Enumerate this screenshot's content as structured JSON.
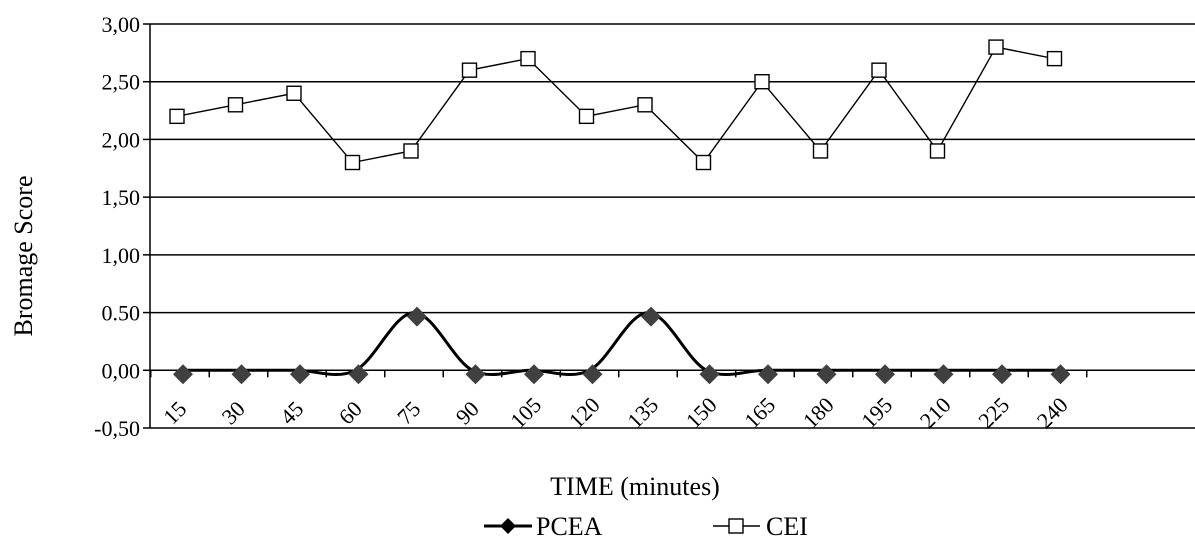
{
  "chart_data": {
    "type": "line",
    "title": "",
    "xlabel": "TIME (minutes)",
    "ylabel": "Bromage Score",
    "categories": [
      "15",
      "30",
      "45",
      "60",
      "75",
      "90",
      "105",
      "120",
      "135",
      "150",
      "165",
      "180",
      "195",
      "210",
      "225",
      "240"
    ],
    "y_tick_labels": [
      "3,00",
      "2,50",
      "2,00",
      "1,50",
      "1,00",
      "0.50",
      "0,00",
      "-0,50"
    ],
    "ylim": [
      -0.5,
      3.0
    ],
    "grid": true,
    "legend_position": "bottom",
    "series": [
      {
        "name": "PCEA",
        "marker": "filled-diamond",
        "smooth": true,
        "color": "#000000",
        "marker_color": "#404040",
        "values": [
          0,
          0,
          0,
          0,
          0.5,
          0,
          0,
          0,
          0.5,
          0,
          0,
          0,
          0,
          0,
          0,
          0
        ]
      },
      {
        "name": "CEI",
        "marker": "open-square",
        "smooth": false,
        "color": "#000000",
        "values": [
          2.2,
          2.3,
          2.4,
          1.8,
          1.9,
          2.6,
          2.7,
          2.2,
          2.3,
          1.8,
          2.5,
          1.9,
          2.6,
          1.9,
          2.8,
          2.7
        ]
      }
    ]
  }
}
